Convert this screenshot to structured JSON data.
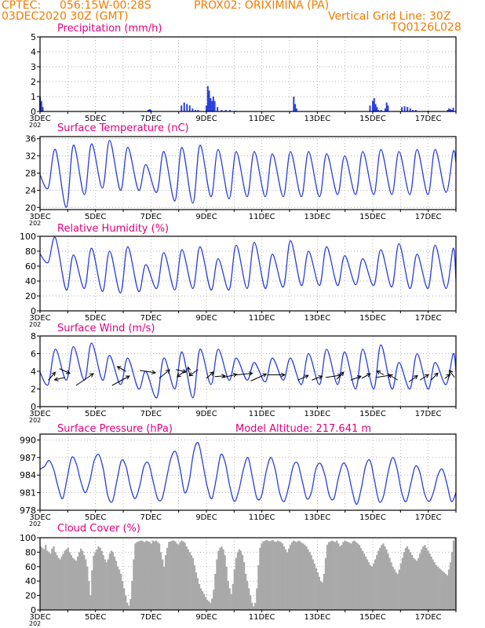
{
  "header": {
    "agency": "CPTEC:",
    "coords": "056:15W-00:28S",
    "location": "PROX02: ORIXIMINA (PA)",
    "run": "03DEC2020 30Z (GMT)",
    "grid_note": "Vertical Grid Line: 30Z",
    "model_code": "TQ0126L028",
    "model_altitude": "Model Altitude: 217.641 m",
    "year_stub": "202"
  },
  "colors": {
    "header": "#f07c00",
    "title": "#e0007c",
    "line": "#2a3fdc",
    "cloud": "#a9a9a9",
    "grid": "#999999"
  },
  "chart_data": [
    {
      "type": "bar",
      "title": "Precipitation (mm/h)",
      "ylim": [
        0,
        5
      ],
      "yticks": [
        "0",
        "1",
        "2",
        "3",
        "4",
        "5"
      ],
      "xlabels": [
        "3DEC",
        "5DEC",
        "7DEC",
        "9DEC",
        "11DEC",
        "13DEC",
        "15DEC",
        "17DEC"
      ],
      "x": [
        3.0,
        3.05,
        3.1,
        6.9,
        6.95,
        7.0,
        8.1,
        8.2,
        8.3,
        8.4,
        8.5,
        8.6,
        8.7,
        9.0,
        9.05,
        9.1,
        9.15,
        9.2,
        9.25,
        9.3,
        9.4,
        9.55,
        9.7,
        9.85,
        10.05,
        12.15,
        12.2,
        12.25,
        14.9,
        15.0,
        15.05,
        15.1,
        15.15,
        15.2,
        15.3,
        15.45,
        15.5,
        15.55,
        16.05,
        16.15,
        16.25,
        16.35,
        16.45,
        16.55,
        17.0,
        17.7,
        17.75,
        17.8,
        17.85,
        17.9
      ],
      "values": [
        1.0,
        0.7,
        0.3,
        0.1,
        0.15,
        0.1,
        0.4,
        0.6,
        0.5,
        0.4,
        0.2,
        0.1,
        0.1,
        0.4,
        1.7,
        1.4,
        0.9,
        0.7,
        1.0,
        0.7,
        0.3,
        0.1,
        0.1,
        0.1,
        0.05,
        1.0,
        0.5,
        0.2,
        0.4,
        0.7,
        0.9,
        0.5,
        0.3,
        0.1,
        0.1,
        0.2,
        0.6,
        0.4,
        0.3,
        0.35,
        0.3,
        0.2,
        0.1,
        0.1,
        0.05,
        0.1,
        0.2,
        0.15,
        0.1,
        0.25
      ]
    },
    {
      "type": "line",
      "title": "Surface Temperature (nC)",
      "ylim": [
        19.5,
        36.5
      ],
      "yticks": [
        "20",
        "24",
        "28",
        "32",
        "36"
      ],
      "xlabels": [
        "3DEC",
        "5DEC",
        "7DEC",
        "9DEC",
        "11DEC",
        "13DEC",
        "15DEC",
        "17DEC"
      ],
      "maxes": [
        33.5,
        34.5,
        34.8,
        35.6,
        34.0,
        30.0,
        33.0,
        34.0,
        34.5,
        33.5,
        33.0,
        33.0,
        32.5,
        33.0,
        33.0,
        32.5,
        32.0,
        33.0,
        33.5,
        33.0,
        33.5,
        33.5,
        33.0
      ],
      "mins": [
        24.5,
        20.0,
        23.0,
        24.5,
        24.0,
        24.0,
        23.5,
        21.5,
        21.0,
        22.5,
        22.0,
        22.5,
        22.5,
        22.5,
        22.5,
        22.5,
        23.0,
        23.0,
        23.0,
        23.0,
        23.0,
        23.0,
        23.5
      ],
      "end": 30.5
    },
    {
      "type": "line",
      "title": "Relative Humidity (%)",
      "ylim": [
        0,
        100
      ],
      "yticks": [
        "0",
        "20",
        "40",
        "60",
        "80",
        "100"
      ],
      "xlabels": [
        "3DEC",
        "5DEC",
        "7DEC",
        "9DEC",
        "11DEC",
        "13DEC",
        "15DEC",
        "17DEC"
      ],
      "maxes": [
        98,
        75,
        84,
        80,
        86,
        62,
        78,
        82,
        86,
        70,
        88,
        92,
        76,
        94,
        80,
        86,
        74,
        70,
        82,
        90,
        76,
        88,
        84
      ],
      "mins": [
        65,
        28,
        30,
        26,
        24,
        26,
        30,
        28,
        30,
        28,
        28,
        30,
        30,
        32,
        34,
        34,
        34,
        35,
        34,
        32,
        30,
        30,
        30
      ],
      "end": 42
    },
    {
      "type": "line",
      "title": "Surface Wind (m/s)",
      "ylim": [
        0,
        8
      ],
      "yticks": [
        "0",
        "2",
        "4",
        "6",
        "8"
      ],
      "xlabels": [
        "3DEC",
        "5DEC",
        "7DEC",
        "9DEC",
        "11DEC",
        "13DEC",
        "15DEC",
        "17DEC"
      ],
      "maxes": [
        6.5,
        6.8,
        7.2,
        5.8,
        5.5,
        4.0,
        5.5,
        6.2,
        6.5,
        6.5,
        5.5,
        5.0,
        5.5,
        5.5,
        6.0,
        6.5,
        6.2,
        6.5,
        7.0,
        5.0,
        6.0,
        5.0,
        6.0
      ],
      "mins": [
        2.5,
        3.0,
        3.0,
        3.0,
        2.5,
        2.0,
        1.0,
        2.0,
        1.0,
        2.5,
        3.0,
        3.0,
        2.8,
        3.0,
        2.5,
        2.5,
        2.5,
        2.0,
        2.0,
        2.0,
        2.0,
        2.0,
        2.5
      ],
      "end": 4.0,
      "arrows": [
        {
          "x": 3.3,
          "y": 3.0,
          "dx": 0.4,
          "dy": 1.0
        },
        {
          "x": 3.7,
          "y": 4.3,
          "dx": 0.6,
          "dy": -0.6
        },
        {
          "x": 3.9,
          "y": 3.3,
          "dx": -0.6,
          "dy": -0.3
        },
        {
          "x": 4.3,
          "y": 2.4,
          "dx": 1.0,
          "dy": 1.5
        },
        {
          "x": 5.6,
          "y": 2.4,
          "dx": 1.0,
          "dy": 1.2
        },
        {
          "x": 6.1,
          "y": 4.0,
          "dx": -0.5,
          "dy": 0.6
        },
        {
          "x": 6.6,
          "y": 4.1,
          "dx": 0.9,
          "dy": -0.3
        },
        {
          "x": 7.3,
          "y": 3.2,
          "dx": 0.6,
          "dy": 1.1
        },
        {
          "x": 7.9,
          "y": 4.2,
          "dx": 0.6,
          "dy": -0.3
        },
        {
          "x": 8.2,
          "y": 4.0,
          "dx": -0.4,
          "dy": -0.7
        },
        {
          "x": 8.4,
          "y": 3.5,
          "dx": -0.1,
          "dy": 1.1
        },
        {
          "x": 8.7,
          "y": 4.2,
          "dx": -0.5,
          "dy": -0.8
        },
        {
          "x": 9.0,
          "y": 3.2,
          "dx": 0.4,
          "dy": 0.8
        },
        {
          "x": 9.3,
          "y": 3.4,
          "dx": 0.6,
          "dy": 0.1
        },
        {
          "x": 9.6,
          "y": 3.3,
          "dx": 0.8,
          "dy": 0.4
        },
        {
          "x": 10.1,
          "y": 3.6,
          "dx": 0.9,
          "dy": 0.2
        },
        {
          "x": 10.6,
          "y": 2.9,
          "dx": 0.9,
          "dy": 0.9
        },
        {
          "x": 11.2,
          "y": 3.6,
          "dx": 1.0,
          "dy": 0.0
        },
        {
          "x": 12.3,
          "y": 3.0,
          "dx": 0.6,
          "dy": 0.6
        },
        {
          "x": 12.8,
          "y": 3.0,
          "dx": 0.6,
          "dy": 0.5
        },
        {
          "x": 13.3,
          "y": 3.3,
          "dx": 0.9,
          "dy": 0.3
        },
        {
          "x": 13.7,
          "y": 3.1,
          "dx": 0.4,
          "dy": 0.9
        },
        {
          "x": 14.2,
          "y": 3.0,
          "dx": 0.6,
          "dy": 0.5
        },
        {
          "x": 14.6,
          "y": 3.2,
          "dx": 0.5,
          "dy": 0.6
        },
        {
          "x": 15.1,
          "y": 3.3,
          "dx": 0.9,
          "dy": 0.3
        },
        {
          "x": 15.4,
          "y": 3.6,
          "dx": -0.4,
          "dy": 0.5
        },
        {
          "x": 15.9,
          "y": 3.0,
          "dx": -0.5,
          "dy": 0.7
        },
        {
          "x": 16.3,
          "y": 2.8,
          "dx": 0.5,
          "dy": 0.8
        },
        {
          "x": 16.7,
          "y": 3.0,
          "dx": 0.5,
          "dy": 0.7
        },
        {
          "x": 17.1,
          "y": 3.0,
          "dx": 0.4,
          "dy": 0.9
        },
        {
          "x": 17.6,
          "y": 3.2,
          "dx": 0.3,
          "dy": 0.5
        },
        {
          "x": 17.95,
          "y": 3.3,
          "dx": -0.3,
          "dy": 0.9
        }
      ]
    },
    {
      "type": "line",
      "title": "Surface Pressure (hPa)",
      "ylim": [
        978,
        991
      ],
      "yticks": [
        "978",
        "981",
        "984",
        "987",
        "990"
      ],
      "xlabels": [
        "3DEC",
        "5DEC",
        "7DEC",
        "9DEC",
        "11DEC",
        "13DEC",
        "15DEC",
        "17DEC"
      ],
      "series": [
        985,
        985.5,
        986.5,
        985,
        982,
        980,
        983.5,
        987,
        986,
        983,
        981,
        983,
        986.5,
        987.5,
        985,
        980.5,
        979.5,
        983,
        986.5,
        985.5,
        982,
        980,
        982,
        985.5,
        986,
        983,
        980,
        980,
        983.5,
        987,
        988,
        985,
        981,
        983,
        988,
        989.5,
        986,
        982,
        980,
        983.5,
        987.5,
        986,
        982,
        979.5,
        981.5,
        985,
        987,
        983.5,
        980,
        980.5,
        984.5,
        987,
        985,
        981,
        979.5,
        982,
        985.5,
        986,
        983,
        980,
        981,
        985,
        986,
        984,
        980.5,
        980,
        983.5,
        986,
        985,
        981.5,
        979,
        981.5,
        985.5,
        986.5,
        983,
        979.5,
        980.5,
        984.5,
        987,
        985,
        981,
        979.5,
        982.5,
        985.5,
        984.5,
        981,
        979.5,
        981,
        984,
        985,
        982.5,
        979.5,
        981
      ],
      "end": 982
    },
    {
      "type": "bar",
      "title": "Cloud Cover (%)",
      "ylim": [
        0,
        100
      ],
      "yticks": [
        "0",
        "20",
        "40",
        "60",
        "80",
        "100"
      ],
      "xlabels": [
        "3DEC",
        "5DEC",
        "7DEC",
        "9DEC",
        "11DEC",
        "13DEC",
        "15DEC",
        "17DEC"
      ],
      "values": [
        88,
        86,
        84,
        90,
        82,
        80,
        78,
        85,
        88,
        80,
        76,
        72,
        70,
        74,
        78,
        82,
        84,
        86,
        80,
        76,
        72,
        70,
        68,
        74,
        80,
        85,
        82,
        76,
        70,
        60,
        40,
        20,
        55,
        75,
        80,
        84,
        88,
        86,
        82,
        76,
        70,
        66,
        70,
        78,
        82,
        80,
        74,
        68,
        60,
        56,
        50,
        40,
        30,
        20,
        10,
        6,
        15,
        40,
        70,
        92,
        94,
        95,
        96,
        96,
        95,
        94,
        96,
        95,
        94,
        92,
        96,
        95,
        96,
        94,
        92,
        80,
        70,
        60,
        76,
        86,
        94,
        95,
        96,
        96,
        95,
        92,
        90,
        94,
        96,
        95,
        93,
        88,
        84,
        80,
        76,
        72,
        62,
        52,
        44,
        36,
        30,
        26,
        22,
        18,
        14,
        12,
        10,
        16,
        28,
        50,
        70,
        82,
        86,
        88,
        84,
        76,
        60,
        40,
        30,
        22,
        36,
        56,
        72,
        80,
        84,
        82,
        76,
        66,
        50,
        40,
        30,
        20,
        10,
        5,
        10,
        30,
        62,
        86,
        92,
        95,
        96,
        97,
        96,
        95,
        96,
        97,
        95,
        94,
        96,
        95,
        94,
        92,
        88,
        84,
        80,
        85,
        90,
        94,
        96,
        95,
        94,
        96,
        95,
        93,
        92,
        90,
        88,
        84,
        80,
        76,
        70,
        64,
        58,
        52,
        46,
        40,
        38,
        50,
        72,
        90,
        94,
        95,
        96,
        95,
        94,
        96,
        92,
        88,
        90,
        94,
        96,
        95,
        94,
        93,
        92,
        95,
        96,
        94,
        92,
        90,
        86,
        82,
        78,
        74,
        70,
        66,
        62,
        60,
        64,
        70,
        76,
        82,
        86,
        90,
        92,
        88,
        84,
        78,
        72,
        66,
        60,
        56,
        52,
        50,
        56,
        64,
        72,
        80,
        86,
        88,
        84,
        80,
        76,
        72,
        70,
        68,
        72,
        78,
        84,
        88,
        90,
        86,
        82,
        78,
        74,
        70,
        66,
        62,
        60,
        58,
        56,
        54,
        52,
        50,
        48,
        56,
        66,
        80,
        96,
        99
      ]
    }
  ]
}
